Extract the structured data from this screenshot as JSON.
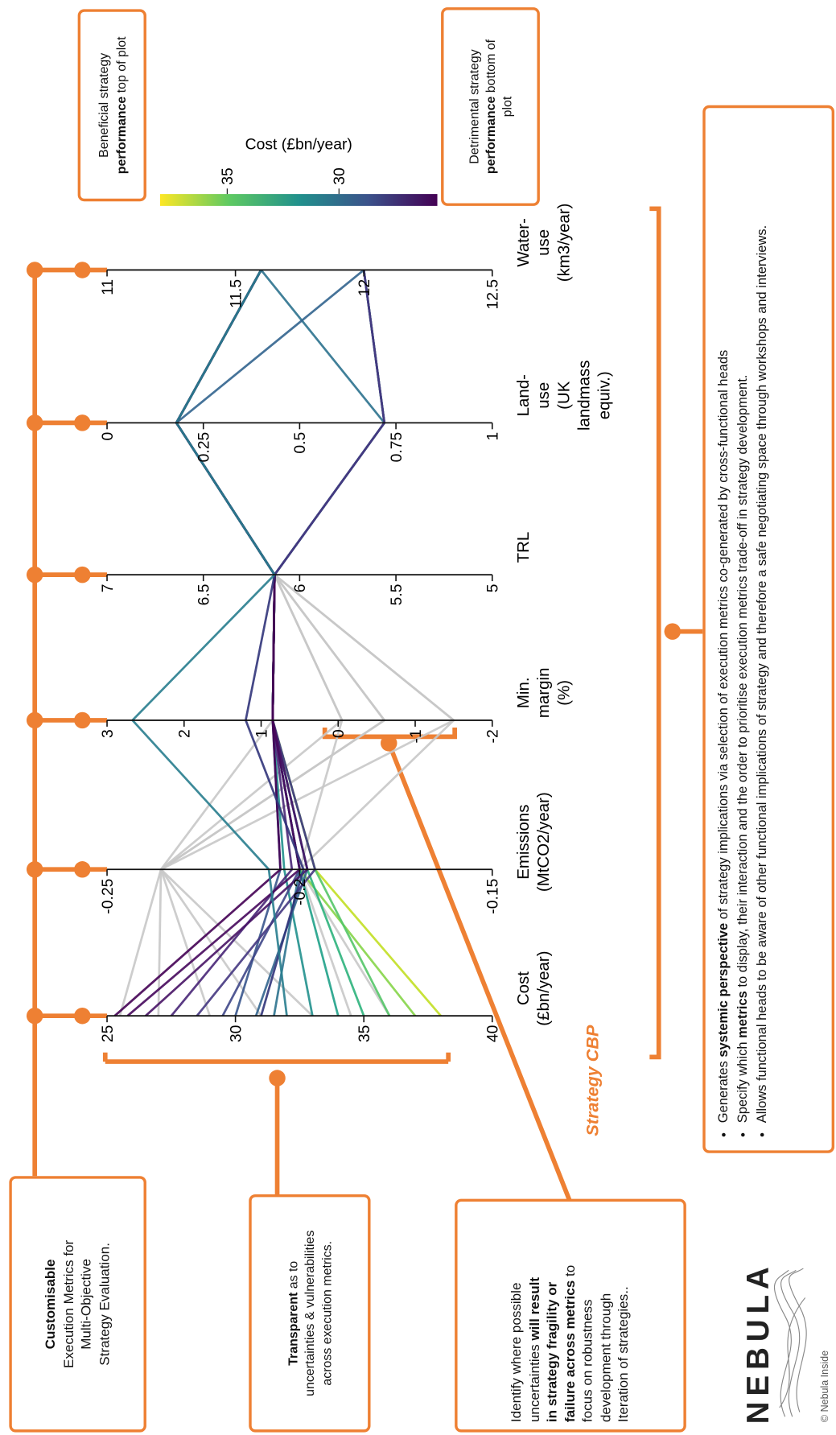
{
  "chart_data": {
    "type": "parallel",
    "axes": [
      {
        "label": [
          "Cost",
          "(£bn/year)"
        ],
        "ylim": [
          25,
          40
        ],
        "yticks": [
          25,
          30,
          35,
          40
        ]
      },
      {
        "label": [
          "Emissions",
          "(MtCO2/year)"
        ],
        "ylim": [
          -0.25,
          -0.15
        ],
        "yticks": [
          -0.25,
          -0.2,
          -0.15
        ]
      },
      {
        "label": [
          "Min.",
          "margin",
          "(%)"
        ],
        "ylim": [
          3,
          -2
        ],
        "yticks": [
          3,
          2,
          1,
          0,
          -1,
          -2
        ]
      },
      {
        "label": [
          "TRL"
        ],
        "ylim": [
          7,
          5
        ],
        "yticks": [
          7,
          6.5,
          6,
          5.5,
          5
        ]
      },
      {
        "label": [
          "Land-",
          "use",
          "(UK",
          "landmass",
          "equiv.)"
        ],
        "ylim": [
          0,
          1
        ],
        "yticks": [
          0,
          0.25,
          0.5,
          0.75,
          1
        ]
      },
      {
        "label": [
          "Water-",
          "use",
          "(km3/year)"
        ],
        "ylim": [
          11,
          12.5
        ],
        "yticks": [
          11,
          11.5,
          12,
          12.5
        ]
      }
    ],
    "series": [
      {
        "color": "#c8c8c8",
        "values": [
          25.5,
          -0.236,
          -0.05,
          6.13,
          0.18,
          11.6
        ]
      },
      {
        "color": "#c8c8c8",
        "values": [
          27,
          -0.236,
          -0.6,
          6.13,
          0.18,
          11.6
        ]
      },
      {
        "color": "#c8c8c8",
        "values": [
          29,
          -0.236,
          -1.5,
          6.13,
          0.18,
          11.6
        ]
      },
      {
        "color": "#c8c8c8",
        "values": [
          31,
          -0.236,
          0.85,
          6.13,
          0.72,
          12
        ]
      },
      {
        "color": "#c8c8c8",
        "values": [
          33,
          -0.236,
          -0.6,
          6.13,
          0.18,
          11.6
        ]
      },
      {
        "color": "#c8c8c8",
        "values": [
          34.5,
          -0.2,
          -1.5,
          6.13,
          0.18,
          11.6
        ]
      },
      {
        "color": "#c8c8c8",
        "values": [
          36,
          -0.2,
          -0.05,
          6.13,
          0.18,
          11.6
        ]
      },
      {
        "color": "#c2df23",
        "values": [
          38,
          -0.196,
          0.85,
          6.13,
          0.18,
          11.6
        ]
      },
      {
        "color": "#86d549",
        "values": [
          37,
          -0.2,
          0.85,
          6.13,
          0.18,
          11.6
        ]
      },
      {
        "color": "#54c568",
        "values": [
          36,
          -0.196,
          0.85,
          6.13,
          0.72,
          12
        ]
      },
      {
        "color": "#2eb37c",
        "values": [
          35,
          -0.198,
          0.85,
          6.13,
          0.18,
          11.6
        ]
      },
      {
        "color": "#1fa188",
        "values": [
          34,
          -0.2,
          0.85,
          6.13,
          0.18,
          11.6
        ]
      },
      {
        "color": "#21908d",
        "values": [
          33,
          -0.204,
          0.85,
          6.13,
          0.72,
          12
        ]
      },
      {
        "color": "#2c728e",
        "values": [
          31.5,
          -0.2,
          0.85,
          6.13,
          0.72,
          11.6
        ]
      },
      {
        "color": "#32648e",
        "values": [
          30.8,
          -0.198,
          0.85,
          6.13,
          0.18,
          12
        ]
      },
      {
        "color": "#39558c",
        "values": [
          30,
          -0.205,
          0.85,
          6.13,
          0.18,
          11.6
        ]
      },
      {
        "color": "#3f4788",
        "values": [
          29.5,
          -0.2,
          0.85,
          6.13,
          0.72,
          12
        ]
      },
      {
        "color": "#453781",
        "values": [
          28.5,
          -0.196,
          0.85,
          6.13,
          0.72,
          12
        ]
      },
      {
        "color": "#482677",
        "values": [
          27.5,
          -0.202,
          0.85,
          6.13,
          0.18,
          11.6
        ]
      },
      {
        "color": "#471365",
        "values": [
          26.5,
          -0.198,
          0.85,
          6.13,
          0.18,
          11.6
        ]
      },
      {
        "color": "#46085c",
        "values": [
          25.8,
          -0.2,
          0.85,
          6.13,
          0.18,
          11.6
        ]
      },
      {
        "color": "#440154",
        "values": [
          25.3,
          -0.205,
          0.85,
          6.13,
          0.18,
          11.6
        ]
      },
      {
        "color": "#31347a",
        "values": [
          31,
          -0.199,
          1.2,
          6.13,
          0.18,
          11.6
        ]
      },
      {
        "color": "#287d8e",
        "values": [
          32,
          -0.208,
          2.67,
          6.13,
          0.18,
          11.6
        ]
      }
    ],
    "colorbar": {
      "label": "Cost (£bn/year)",
      "clim": [
        38,
        25.6
      ],
      "ticks": [
        35,
        30
      ],
      "colors": [
        "#fde725",
        "#5ec962",
        "#21918c",
        "#3b528b",
        "#440154"
      ]
    },
    "caption": "Strategy CBP"
  },
  "annotations": [
    {
      "lines": [
        [
          {
            "text": "Customisable",
            "bold": true
          }
        ],
        [
          {
            "text": "Execution Metrics for"
          }
        ],
        [
          {
            "text": "Multi-Objective"
          }
        ],
        [
          {
            "text": "Strategy Evaluation."
          }
        ]
      ]
    },
    {
      "lines": [
        [
          {
            "text": "Transparent",
            "bold": true
          },
          {
            "text": " as to"
          }
        ],
        [
          {
            "text": "uncertainties & vulnerabilities"
          }
        ],
        [
          {
            "text": "across execution metrics."
          }
        ]
      ]
    },
    {
      "lines": [
        [
          {
            "text": "Identify where possible"
          }
        ],
        [
          {
            "text": "uncertainties "
          },
          {
            "text": "will result",
            "bold": true
          }
        ],
        [
          {
            "text": "in strategy fragility or",
            "bold": true
          }
        ],
        [
          {
            "text": "failure across metrics",
            "bold": true
          },
          {
            "text": " to"
          }
        ],
        [
          {
            "text": "focus on robustness"
          }
        ],
        [
          {
            "text": "development through"
          }
        ],
        [
          {
            "text": "Iteration of strategies.."
          }
        ]
      ]
    },
    {
      "lines": [
        [
          {
            "text": "Beneficial strategy"
          }
        ],
        [
          {
            "text": "performance",
            "bold": true
          },
          {
            "text": " top of plot"
          }
        ]
      ]
    },
    {
      "lines": [
        [
          {
            "text": "Detrimental strategy"
          }
        ],
        [
          {
            "text": "performance",
            "bold": true
          },
          {
            "text": " bottom of"
          }
        ],
        [
          {
            "text": "plot"
          }
        ]
      ]
    }
  ],
  "bullets": [
    [
      {
        "text": "Generates "
      },
      {
        "text": "systemic perspective",
        "bold": true
      },
      {
        "text": " of strategy implications via selection of execution metrics co-generated by cross-functional heads"
      }
    ],
    [
      {
        "text": "Specify which "
      },
      {
        "text": "metrics",
        "bold": true
      },
      {
        "text": " to display, their interaction and the order to prioritise execution metrics trade-off in strategy development."
      }
    ],
    [
      {
        "text": "Allows functional heads to be aware of other functional implications of strategy and therefore a safe negotiating space through workshops and interviews."
      }
    ]
  ],
  "logo": {
    "name": "NEBULA",
    "copyright": "© Nebula Inside"
  }
}
